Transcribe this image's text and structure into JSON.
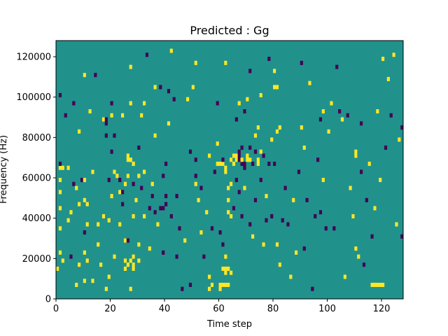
{
  "chart_data": {
    "type": "heatmap",
    "title": "Predicted : Gg",
    "xlabel": "Time step",
    "ylabel": "Frequency (Hz)",
    "xlim": [
      0,
      128
    ],
    "ylim": [
      0,
      128000
    ],
    "x_ticks": [
      0,
      20,
      40,
      60,
      80,
      100,
      120
    ],
    "y_ticks": [
      0,
      20000,
      40000,
      60000,
      80000,
      100000,
      120000
    ],
    "grid": false,
    "legend": "none",
    "n_time_steps": 128,
    "n_frequency_bins": 64,
    "bin_height_hz": 2000,
    "colors": {
      "background": "#21918c",
      "high": "#fde725",
      "low": "#440154"
    },
    "cells": [
      [
        0,
        7,
        "high"
      ],
      [
        1,
        11,
        "high"
      ],
      [
        1,
        32,
        "high"
      ],
      [
        1,
        17,
        "high"
      ],
      [
        1,
        22,
        "high"
      ],
      [
        1,
        26,
        "high"
      ],
      [
        1,
        29,
        "high"
      ],
      [
        1,
        33,
        "low"
      ],
      [
        1,
        50,
        "low"
      ],
      [
        2,
        9,
        "high"
      ],
      [
        2,
        32,
        "high"
      ],
      [
        3,
        45,
        "low"
      ],
      [
        4,
        32,
        "high"
      ],
      [
        4,
        19,
        "high"
      ],
      [
        5,
        21,
        "high"
      ],
      [
        5,
        10,
        "low"
      ],
      [
        6,
        28,
        "low"
      ],
      [
        6,
        48,
        "low"
      ],
      [
        7,
        27,
        "high"
      ],
      [
        7,
        3,
        "high"
      ],
      [
        8,
        8,
        "high"
      ],
      [
        8,
        23,
        "high"
      ],
      [
        8,
        41,
        "high"
      ],
      [
        9,
        29,
        "low"
      ],
      [
        10,
        4,
        "high"
      ],
      [
        10,
        11,
        "high"
      ],
      [
        10,
        16,
        "low"
      ],
      [
        10,
        24,
        "high"
      ],
      [
        10,
        29,
        "high"
      ],
      [
        10,
        55,
        "high"
      ],
      [
        11,
        9,
        "high"
      ],
      [
        11,
        18,
        "high"
      ],
      [
        11,
        23,
        "high"
      ],
      [
        12,
        46,
        "high"
      ],
      [
        13,
        4,
        "high"
      ],
      [
        13,
        31,
        "high"
      ],
      [
        14,
        55,
        "low"
      ],
      [
        15,
        13,
        "high"
      ],
      [
        15,
        18,
        "high"
      ],
      [
        16,
        8,
        "high"
      ],
      [
        17,
        20,
        "high"
      ],
      [
        17,
        44,
        "high"
      ],
      [
        18,
        2,
        "high"
      ],
      [
        18,
        40,
        "low"
      ],
      [
        18,
        43,
        "low"
      ],
      [
        18,
        44,
        "low"
      ],
      [
        19,
        5,
        "high"
      ],
      [
        19,
        19,
        "high"
      ],
      [
        19,
        29,
        "low"
      ],
      [
        20,
        45,
        "high"
      ],
      [
        20,
        36,
        "low"
      ],
      [
        20,
        48,
        "low"
      ],
      [
        21,
        10,
        "high"
      ],
      [
        21,
        31,
        "high"
      ],
      [
        21,
        40,
        "low"
      ],
      [
        22,
        30,
        "high"
      ],
      [
        23,
        29,
        "low"
      ],
      [
        23,
        26,
        "high"
      ],
      [
        23,
        18,
        "high"
      ],
      [
        24,
        23,
        "low"
      ],
      [
        24,
        26,
        "low"
      ],
      [
        24,
        45,
        "high"
      ],
      [
        25,
        7,
        "high"
      ],
      [
        25,
        9,
        "high"
      ],
      [
        25,
        28,
        "high"
      ],
      [
        25,
        14,
        "high"
      ],
      [
        26,
        8,
        "high"
      ],
      [
        26,
        14,
        "low"
      ],
      [
        26,
        30,
        "high"
      ],
      [
        27,
        2,
        "high"
      ],
      [
        27,
        9,
        "high"
      ],
      [
        27,
        34,
        "high"
      ],
      [
        27,
        48,
        "high"
      ],
      [
        27,
        57,
        "high"
      ],
      [
        28,
        7,
        "high"
      ],
      [
        28,
        10,
        "high"
      ],
      [
        28,
        20,
        "high"
      ],
      [
        28,
        28,
        "low"
      ],
      [
        28,
        8,
        "high"
      ],
      [
        28,
        33,
        "high"
      ],
      [
        29,
        24,
        "high"
      ],
      [
        30,
        9,
        "high"
      ],
      [
        30,
        13,
        "high"
      ],
      [
        30,
        30,
        "high"
      ],
      [
        30,
        37,
        "low"
      ],
      [
        31,
        27,
        "low"
      ],
      [
        31,
        45,
        "high"
      ],
      [
        32,
        31,
        "high"
      ],
      [
        32,
        48,
        "high"
      ],
      [
        32,
        20,
        "high"
      ],
      [
        33,
        60,
        "low"
      ],
      [
        34,
        22,
        "low"
      ],
      [
        34,
        12,
        "high"
      ],
      [
        35,
        25,
        "low"
      ],
      [
        35,
        28,
        "high"
      ],
      [
        36,
        21,
        "low"
      ],
      [
        36,
        40,
        "high"
      ],
      [
        36,
        52,
        "high"
      ],
      [
        37,
        18,
        "high"
      ],
      [
        38,
        22,
        "low"
      ],
      [
        38,
        52,
        "low"
      ],
      [
        39,
        11,
        "low"
      ],
      [
        39,
        22,
        "low"
      ],
      [
        39,
        30,
        "low"
      ],
      [
        40,
        23,
        "low"
      ],
      [
        40,
        33,
        "low"
      ],
      [
        41,
        43,
        "high"
      ],
      [
        41,
        51,
        "low"
      ],
      [
        42,
        20,
        "low"
      ],
      [
        42,
        61,
        "high"
      ],
      [
        43,
        49,
        "low"
      ],
      [
        44,
        10,
        "low"
      ],
      [
        44,
        25,
        "low"
      ],
      [
        45,
        17,
        "low"
      ],
      [
        46,
        2,
        "low"
      ],
      [
        47,
        14,
        "high"
      ],
      [
        48,
        49,
        "high"
      ],
      [
        49,
        3,
        "low"
      ],
      [
        49,
        36,
        "low"
      ],
      [
        50,
        52,
        "high"
      ],
      [
        51,
        28,
        "high"
      ],
      [
        51,
        30,
        "low"
      ],
      [
        51,
        34,
        "low"
      ],
      [
        51,
        58,
        "high"
      ],
      [
        52,
        24,
        "high"
      ],
      [
        53,
        16,
        "high"
      ],
      [
        53,
        27,
        "low"
      ],
      [
        54,
        10,
        "low"
      ],
      [
        55,
        21,
        "high"
      ],
      [
        56,
        2,
        "high"
      ],
      [
        56,
        5,
        "high"
      ],
      [
        56,
        35,
        "high"
      ],
      [
        57,
        3,
        "high"
      ],
      [
        57,
        17,
        "low"
      ],
      [
        58,
        31,
        "low"
      ],
      [
        59,
        38,
        "high"
      ],
      [
        59,
        48,
        "low"
      ],
      [
        60,
        16,
        "low"
      ],
      [
        61,
        13,
        "low"
      ],
      [
        61,
        33,
        "high"
      ],
      [
        62,
        58,
        "high"
      ],
      [
        62,
        6,
        "high"
      ],
      [
        62,
        10,
        "high"
      ],
      [
        63,
        21,
        "high"
      ],
      [
        63,
        24,
        "high"
      ],
      [
        64,
        6,
        "high"
      ],
      [
        64,
        20,
        "high"
      ],
      [
        64,
        28,
        "high"
      ],
      [
        65,
        22,
        "low"
      ],
      [
        66,
        44,
        "low"
      ],
      [
        66,
        29,
        "low"
      ],
      [
        67,
        26,
        "low"
      ],
      [
        67,
        48,
        "high"
      ],
      [
        68,
        20,
        "low"
      ],
      [
        68,
        37,
        "low"
      ],
      [
        69,
        46,
        "low"
      ],
      [
        69,
        27,
        "high"
      ],
      [
        70,
        49,
        "high"
      ],
      [
        71,
        18,
        "low"
      ],
      [
        71,
        56,
        "low"
      ],
      [
        72,
        15,
        "high"
      ],
      [
        73,
        24,
        "low"
      ],
      [
        73,
        40,
        "high"
      ],
      [
        74,
        42,
        "high"
      ],
      [
        74,
        33,
        "high"
      ],
      [
        75,
        29,
        "low"
      ],
      [
        75,
        50,
        "high"
      ],
      [
        76,
        13,
        "high"
      ],
      [
        77,
        19,
        "low"
      ],
      [
        77,
        25,
        "high"
      ],
      [
        78,
        33,
        "low"
      ],
      [
        78,
        59,
        "low"
      ],
      [
        79,
        20,
        "low"
      ],
      [
        79,
        39,
        "high"
      ],
      [
        80,
        33,
        "low"
      ],
      [
        80,
        56,
        "high"
      ],
      [
        81,
        13,
        "high"
      ],
      [
        81,
        41,
        "high"
      ],
      [
        82,
        42,
        "high"
      ],
      [
        82,
        8,
        "high"
      ],
      [
        83,
        19,
        "low"
      ],
      [
        84,
        27,
        "low"
      ],
      [
        85,
        18,
        "low"
      ],
      [
        86,
        5,
        "high"
      ],
      [
        87,
        24,
        "high"
      ],
      [
        88,
        11,
        "high"
      ],
      [
        89,
        31,
        "low"
      ],
      [
        90,
        58,
        "low"
      ],
      [
        90,
        42,
        "high"
      ],
      [
        91,
        12,
        "low"
      ],
      [
        91,
        37,
        "high"
      ],
      [
        92,
        24,
        "low"
      ],
      [
        93,
        53,
        "high"
      ],
      [
        94,
        2,
        "low"
      ],
      [
        95,
        20,
        "low"
      ],
      [
        96,
        34,
        "low"
      ],
      [
        97,
        21,
        "low"
      ],
      [
        97,
        44,
        "low"
      ],
      [
        98,
        29,
        "high"
      ],
      [
        98,
        46,
        "high"
      ],
      [
        99,
        17,
        "low"
      ],
      [
        100,
        41,
        "high"
      ],
      [
        101,
        48,
        "high"
      ],
      [
        102,
        17,
        "low"
      ],
      [
        103,
        57,
        "low"
      ],
      [
        104,
        46,
        "low"
      ],
      [
        105,
        44,
        "high"
      ],
      [
        106,
        5,
        "high"
      ],
      [
        107,
        45,
        "low"
      ],
      [
        108,
        27,
        "high"
      ],
      [
        109,
        20,
        "high"
      ],
      [
        110,
        12,
        "high"
      ],
      [
        110,
        36,
        "high"
      ],
      [
        111,
        10,
        "high"
      ],
      [
        112,
        31,
        "low"
      ],
      [
        112,
        43,
        "low"
      ],
      [
        113,
        8,
        "low"
      ],
      [
        114,
        24,
        "low"
      ],
      [
        115,
        33,
        "high"
      ],
      [
        116,
        15,
        "low"
      ],
      [
        117,
        22,
        "high"
      ],
      [
        118,
        46,
        "high"
      ],
      [
        119,
        29,
        "high"
      ],
      [
        120,
        59,
        "high"
      ],
      [
        121,
        37,
        "low"
      ],
      [
        122,
        54,
        "high"
      ],
      [
        123,
        45,
        "low"
      ],
      [
        124,
        60,
        "high"
      ],
      [
        125,
        18,
        "high"
      ],
      [
        126,
        39,
        "high"
      ],
      [
        127,
        15,
        "low"
      ],
      [
        127,
        42,
        "low"
      ],
      [
        59,
        33,
        "high"
      ],
      [
        60,
        33,
        "high"
      ],
      [
        61,
        34,
        "low"
      ],
      [
        62,
        32,
        "high"
      ],
      [
        62,
        31,
        "high"
      ],
      [
        63,
        27,
        "high"
      ],
      [
        64,
        34,
        "high"
      ],
      [
        65,
        35,
        "high"
      ],
      [
        65,
        33,
        "high"
      ],
      [
        66,
        34,
        "high"
      ],
      [
        66,
        35,
        "high"
      ],
      [
        67,
        36,
        "low"
      ],
      [
        67,
        35,
        "low"
      ],
      [
        67,
        34,
        "low"
      ],
      [
        68,
        33,
        "low"
      ],
      [
        68,
        34,
        "high"
      ],
      [
        69,
        33,
        "low"
      ],
      [
        69,
        32,
        "low"
      ],
      [
        70,
        35,
        "high"
      ],
      [
        70,
        34,
        "high"
      ],
      [
        71,
        37,
        "low"
      ],
      [
        71,
        34,
        "high"
      ],
      [
        72,
        33,
        "low"
      ],
      [
        73,
        36,
        "low"
      ],
      [
        74,
        34,
        "high"
      ],
      [
        75,
        36,
        "high"
      ],
      [
        76,
        35,
        "low"
      ],
      [
        60,
        3,
        "high"
      ],
      [
        61,
        3,
        "high"
      ],
      [
        62,
        3,
        "high"
      ],
      [
        63,
        3,
        "high"
      ],
      [
        60,
        2,
        "high"
      ],
      [
        61,
        7,
        "high"
      ],
      [
        62,
        7,
        "high"
      ],
      [
        63,
        7,
        "high"
      ],
      [
        116,
        3,
        "high"
      ],
      [
        117,
        3,
        "high"
      ],
      [
        118,
        3,
        "high"
      ],
      [
        119,
        3,
        "high"
      ],
      [
        120,
        3,
        "high"
      ],
      [
        80,
        52,
        "high"
      ],
      [
        81,
        52,
        "high"
      ],
      [
        26,
        34,
        "high"
      ],
      [
        27,
        34,
        "high"
      ],
      [
        26,
        35,
        "high"
      ],
      [
        20,
        25,
        "high"
      ],
      [
        28,
        33,
        "high"
      ],
      [
        40,
        25,
        "low"
      ],
      [
        110,
        35,
        "high"
      ]
    ]
  }
}
